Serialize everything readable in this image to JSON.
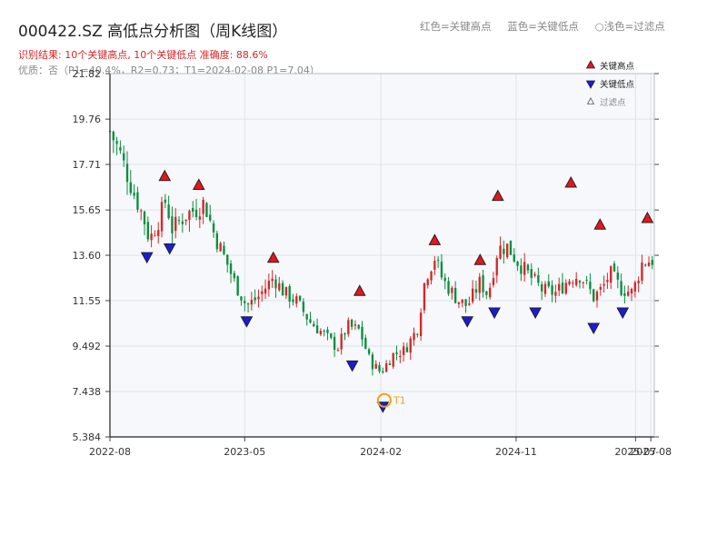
{
  "header": {
    "title": "000422.SZ 高低点分析图（周K线图）",
    "result_line": "识别结果: 10个关键高点, 10个关键低点   准确度: 88.6%",
    "quality_line": "优质：否（P1=40.4%，R2=0.73；T1=2024-02-08 P1=7.04）",
    "legend_red": "红色=关键高点",
    "legend_blue": "蓝色=关键低点",
    "legend_light": "○浅色=过滤点"
  },
  "colors": {
    "up": "#d62728",
    "down": "#0a8f3c",
    "high_marker": "#e8141b",
    "low_marker": "#1a1adb",
    "t1_marker": "#f0a020",
    "grid": "#dfe3ea",
    "plot_bg": "#f6f8fb"
  },
  "chart_data": {
    "type": "candlestick",
    "y_ticks": [
      "5.384",
      "7.438",
      "9.492",
      "11.55",
      "13.60",
      "15.65",
      "17.71",
      "19.76",
      "21.82"
    ],
    "ylim": [
      5.384,
      21.82
    ],
    "x_ticks": [
      {
        "label": "2022-08",
        "date": "2022-08-01"
      },
      {
        "label": "2023-05",
        "date": "2023-05-01"
      },
      {
        "label": "2024-02",
        "date": "2024-02-01"
      },
      {
        "label": "2024-11",
        "date": "2024-11-01"
      },
      {
        "label": "2025-07",
        "date": "2025-07-01"
      },
      {
        "label": "2025-08",
        "date": "2025-08-01"
      }
    ],
    "x_range": [
      "2022-08-01",
      "2025-08-08"
    ],
    "legend": {
      "position": "top-right",
      "items": [
        {
          "label": "关键高点",
          "marker": "high"
        },
        {
          "label": "关键低点",
          "marker": "low"
        },
        {
          "label": "过滤点",
          "marker": "filtered"
        }
      ]
    },
    "close_path": [
      [
        "2022-08-01",
        19.2
      ],
      [
        "2022-08-20",
        18.3
      ],
      [
        "2022-09-15",
        16.6
      ],
      [
        "2022-10-08",
        15.3
      ],
      [
        "2022-10-20",
        14.3
      ],
      [
        "2022-11-08",
        15.2
      ],
      [
        "2022-11-22",
        16.1
      ],
      [
        "2022-12-05",
        14.8
      ],
      [
        "2023-01-05",
        15.5
      ],
      [
        "2023-01-25",
        15.7
      ],
      [
        "2023-02-08",
        16.0
      ],
      [
        "2023-03-01",
        14.5
      ],
      [
        "2023-03-25",
        13.3
      ],
      [
        "2023-04-10",
        12.4
      ],
      [
        "2023-05-05",
        11.3
      ],
      [
        "2023-05-28",
        11.7
      ],
      [
        "2023-06-28",
        12.6
      ],
      [
        "2023-07-20",
        11.9
      ],
      [
        "2023-08-15",
        11.5
      ],
      [
        "2023-09-10",
        10.6
      ],
      [
        "2023-10-05",
        10.1
      ],
      [
        "2023-11-05",
        9.4
      ],
      [
        "2023-11-25",
        10.4
      ],
      [
        "2023-12-20",
        10.2
      ],
      [
        "2024-01-10",
        8.8
      ],
      [
        "2024-02-01",
        8.3
      ],
      [
        "2024-02-25",
        9.1
      ],
      [
        "2024-03-20",
        9.3
      ],
      [
        "2024-04-15",
        10.3
      ],
      [
        "2024-05-01",
        12.6
      ],
      [
        "2024-05-20",
        13.5
      ],
      [
        "2024-06-05",
        12.5
      ],
      [
        "2024-07-05",
        11.6
      ],
      [
        "2024-07-25",
        11.3
      ],
      [
        "2024-08-20",
        12.4
      ],
      [
        "2024-09-05",
        11.8
      ],
      [
        "2024-09-25",
        13.9
      ],
      [
        "2024-10-15",
        14.0
      ],
      [
        "2024-11-01",
        13.4
      ],
      [
        "2024-12-01",
        12.6
      ],
      [
        "2024-12-25",
        12.0
      ],
      [
        "2025-01-20",
        11.9
      ],
      [
        "2025-02-20",
        12.6
      ],
      [
        "2025-03-12",
        12.7
      ],
      [
        "2025-04-07",
        11.7
      ],
      [
        "2025-04-25",
        12.1
      ],
      [
        "2025-05-10",
        12.8
      ],
      [
        "2025-06-01",
        12.1
      ],
      [
        "2025-06-25",
        11.9
      ],
      [
        "2025-07-15",
        13.3
      ],
      [
        "2025-08-08",
        13.4
      ]
    ],
    "key_highs": [
      {
        "date": "2022-11-20",
        "value": 16.9
      },
      {
        "date": "2023-01-28",
        "value": 16.5
      },
      {
        "date": "2023-06-28",
        "value": 13.2
      },
      {
        "date": "2023-12-20",
        "value": 11.7
      },
      {
        "date": "2024-05-20",
        "value": 14.0
      },
      {
        "date": "2024-08-20",
        "value": 13.1
      },
      {
        "date": "2024-09-25",
        "value": 16.0
      },
      {
        "date": "2025-02-20",
        "value": 16.6
      },
      {
        "date": "2025-04-20",
        "value": 14.7
      },
      {
        "date": "2025-07-25",
        "value": 15.0
      }
    ],
    "key_lows": [
      {
        "date": "2022-10-15",
        "value": 13.8
      },
      {
        "date": "2022-11-30",
        "value": 14.2
      },
      {
        "date": "2023-05-05",
        "value": 10.9
      },
      {
        "date": "2023-12-05",
        "value": 8.9
      },
      {
        "date": "2024-07-25",
        "value": 10.9
      },
      {
        "date": "2024-09-18",
        "value": 11.3
      },
      {
        "date": "2024-12-10",
        "value": 11.3
      },
      {
        "date": "2025-04-07",
        "value": 10.6
      },
      {
        "date": "2025-06-05",
        "value": 11.3
      },
      {
        "date": "2024-02-05",
        "value": 7.04
      }
    ],
    "t1_point": {
      "label": "T1",
      "date": "2024-02-08",
      "value": 7.04
    }
  }
}
